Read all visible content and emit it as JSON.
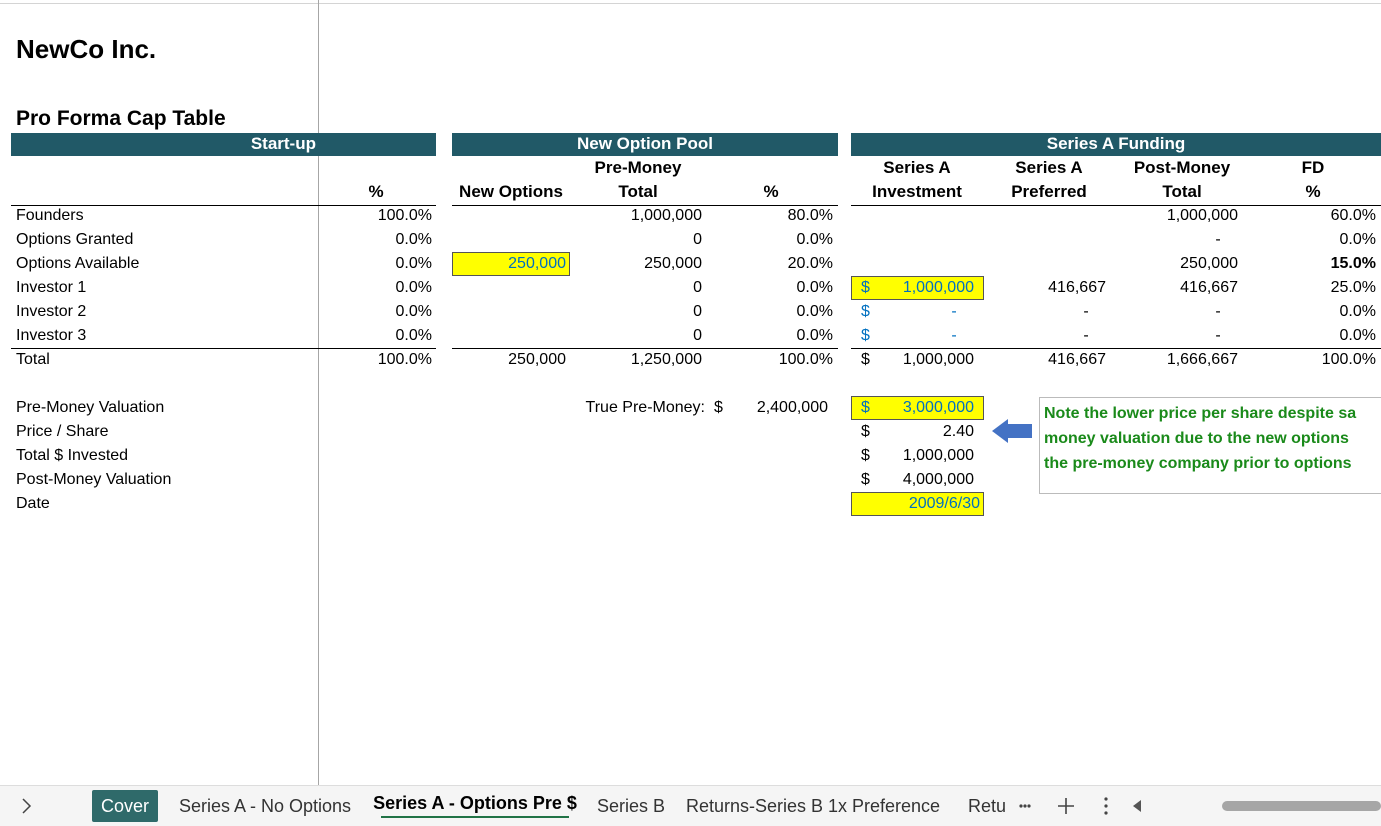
{
  "header": {
    "title": "NewCo Inc.",
    "subtitle": "Pro Forma Cap Table"
  },
  "sections": [
    "Start-up",
    "New Option Pool",
    "Series A Funding"
  ],
  "column_headers": [
    [
      "%"
    ],
    [
      "New Options"
    ],
    [
      "Pre-Money",
      "Total"
    ],
    [
      "%"
    ],
    [
      "Series A",
      "Investment"
    ],
    [
      "Series A",
      "Preferred"
    ],
    [
      "Post-Money",
      "Total"
    ],
    [
      "FD",
      "%"
    ]
  ],
  "rows": [
    {
      "label": "Founders",
      "cells": [
        "100.0%",
        null,
        "1,000,000",
        "80.0%",
        null,
        null,
        "1,000,000",
        "60.0%"
      ]
    },
    {
      "label": "Options Granted",
      "cells": [
        "0.0%",
        null,
        "0",
        "0.0%",
        null,
        null,
        "-",
        "0.0%"
      ]
    },
    {
      "label": "Options Available",
      "cells": [
        "0.0%",
        "250,000",
        "250,000",
        "20.0%",
        null,
        null,
        "250,000",
        "15.0%"
      ]
    },
    {
      "label": "Investor 1",
      "cells": [
        "0.0%",
        null,
        "0",
        "0.0%",
        [
          "$",
          "1,000,000"
        ],
        "416,667",
        "416,667",
        "25.0%"
      ]
    },
    {
      "label": "Investor 2",
      "cells": [
        "0.0%",
        null,
        "0",
        "0.0%",
        [
          "$",
          "-"
        ],
        "-",
        "-",
        "0.0%"
      ]
    },
    {
      "label": "Investor 3",
      "cells": [
        "0.0%",
        null,
        "0",
        "0.0%",
        [
          "$",
          "-"
        ],
        "-",
        "-",
        "0.0%"
      ]
    },
    {
      "label": "Total",
      "cells": [
        "100.0%",
        "250,000",
        "1,250,000",
        "100.0%",
        [
          "$",
          "1,000,000"
        ],
        "416,667",
        "1,666,667",
        "100.0%"
      ]
    }
  ],
  "valuation": [
    {
      "label": "Pre-Money Valuation",
      "currency": "$",
      "amount": "3,000,000"
    },
    {
      "label": "Price / Share",
      "currency": "$",
      "amount": "2.40"
    },
    {
      "label": "Total $ Invested",
      "currency": "$",
      "amount": "1,000,000"
    },
    {
      "label": "Post-Money Valuation",
      "currency": "$",
      "amount": "4,000,000"
    },
    {
      "label": "Date",
      "amount": "2009/6/30"
    }
  ],
  "true_premoney": {
    "label": "True Pre-Money:",
    "currency": "$",
    "amount": "2,400,000"
  },
  "note": [
    "Note the lower price per share despite sa",
    "money valuation due to the new options",
    "the pre-money company prior to options"
  ],
  "tabs": [
    "Cover",
    "Series A - No Options",
    "Series A - Options Pre $",
    "Series B",
    "Returns-Series B 1x Preference",
    "Retu"
  ]
}
